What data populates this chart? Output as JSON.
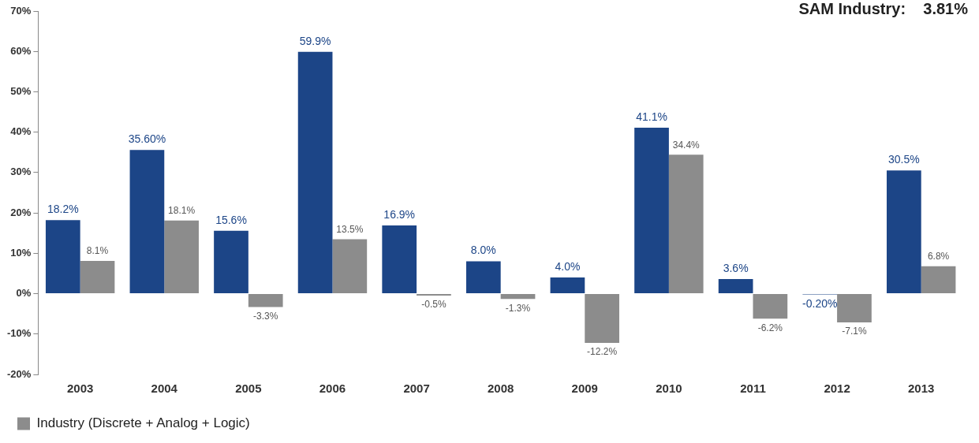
{
  "chart_data": {
    "type": "bar",
    "categories": [
      "2003",
      "2004",
      "2005",
      "2006",
      "2007",
      "2008",
      "2009",
      "2010",
      "2011",
      "2012",
      "2013"
    ],
    "series": [
      {
        "color": "#1c4587",
        "values": [
          18.2,
          35.6,
          15.6,
          59.9,
          16.9,
          8.0,
          4.0,
          41.1,
          3.6,
          -0.2,
          30.5
        ],
        "value_labels": [
          "18.2%",
          "35.60%",
          "15.6%",
          "59.9%",
          "16.9%",
          "8.0%",
          "4.0%",
          "41.1%",
          "3.6%",
          "-0.20%",
          "30.5%"
        ]
      },
      {
        "name": "Industry (Discrete + Analog + Logic)",
        "color": "#8c8c8c",
        "values": [
          8.1,
          18.1,
          -3.3,
          13.5,
          -0.5,
          -1.3,
          -12.2,
          34.4,
          -6.2,
          -7.1,
          6.8
        ],
        "value_labels": [
          "8.1%",
          "18.1%",
          "-3.3%",
          "13.5%",
          "-0.5%",
          "-1.3%",
          "-12.2%",
          "34.4%",
          "-6.2%",
          "-7.1%",
          "6.8%"
        ]
      }
    ],
    "ylim": [
      -20,
      70
    ],
    "yticks": [
      {
        "value": -20,
        "label": "-20%"
      },
      {
        "value": -10,
        "label": "-10%"
      },
      {
        "value": 0,
        "label": "0%"
      },
      {
        "value": 10,
        "label": "10%"
      },
      {
        "value": 20,
        "label": "20%"
      },
      {
        "value": 30,
        "label": "30%"
      },
      {
        "value": 40,
        "label": "40%"
      },
      {
        "value": 50,
        "label": "50%"
      },
      {
        "value": 60,
        "label": "60%"
      },
      {
        "value": 70,
        "label": "70%"
      }
    ],
    "grid": false,
    "legend": "bottom left",
    "annotations": [
      "SAM Industry:    3.81%"
    ]
  }
}
